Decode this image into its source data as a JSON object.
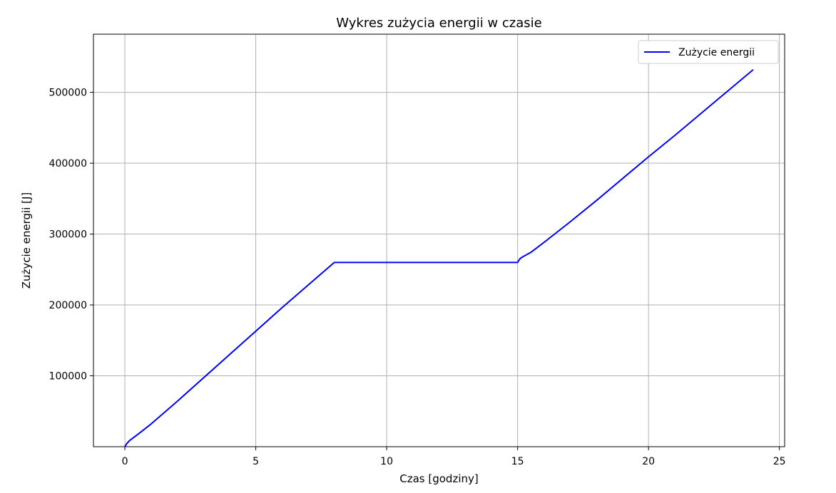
{
  "chart_data": {
    "type": "line",
    "title": "Wykres zużycia energii w czasie",
    "xlabel": "Czas [godziny]",
    "ylabel": "Zużycie energii [J]",
    "xlim": [
      -1.2,
      25.2
    ],
    "ylim": [
      0,
      582000
    ],
    "x_ticks": [
      0,
      5,
      10,
      15,
      20,
      25
    ],
    "x_tick_labels": [
      "0",
      "5",
      "10",
      "15",
      "20",
      "25"
    ],
    "y_ticks": [
      100000,
      200000,
      300000,
      400000,
      500000
    ],
    "y_tick_labels": [
      "100000",
      "200000",
      "300000",
      "400000",
      "500000"
    ],
    "grid": true,
    "legend_position": "top-right",
    "series": [
      {
        "name": "Zużycie energii",
        "color": "#0000ff",
        "x": [
          0,
          0.05,
          0.1,
          0.15,
          0.2,
          0.3,
          0.5,
          1,
          2,
          3,
          4,
          5,
          6,
          7,
          8,
          9,
          10,
          11,
          12,
          13,
          14,
          15,
          15.05,
          15.1,
          15.2,
          15.3,
          15.5,
          16,
          17,
          18,
          19,
          20,
          21,
          22,
          23,
          24
        ],
        "y": [
          0,
          3000,
          5500,
          7500,
          9200,
          12000,
          17500,
          32000,
          64000,
          97000,
          130000,
          163000,
          196000,
          228000,
          260000,
          260000,
          260000,
          260000,
          260000,
          260000,
          260000,
          260000,
          263000,
          265500,
          268000,
          270000,
          274000,
          288000,
          317000,
          347000,
          378000,
          409000,
          439000,
          470000,
          501000,
          532000
        ]
      }
    ]
  }
}
